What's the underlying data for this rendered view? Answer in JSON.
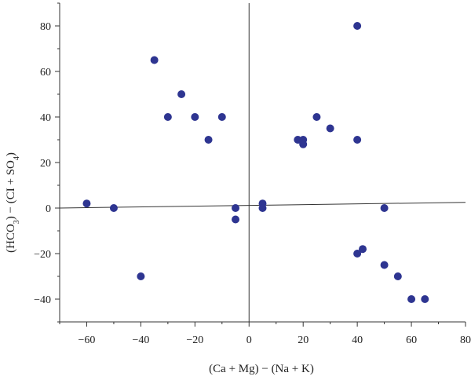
{
  "chart_data": {
    "type": "scatter",
    "title": "",
    "xlabel": "(Ca + Mg) − (Na + K)",
    "ylabel": {
      "part1": "(HCO",
      "sub1": "3",
      "part2": ") − (CI + SO",
      "sub2": "4",
      "part3": ")"
    },
    "xlim": [
      -70,
      80
    ],
    "ylim": [
      -50,
      90
    ],
    "xticks": [
      -60,
      -40,
      -20,
      0,
      20,
      40,
      60,
      80
    ],
    "yticks": [
      -40,
      -20,
      0,
      20,
      40,
      60,
      80
    ],
    "xtick_labels": [
      "−60",
      "−40",
      "−20",
      "0",
      "20",
      "40",
      "60",
      "80"
    ],
    "ytick_labels": [
      "−40",
      "−20",
      "0",
      "20",
      "40",
      "60",
      "80"
    ],
    "grid": false,
    "legend": "none",
    "marker_color": "#2e3591",
    "reference_lines": {
      "vertical_x": 0,
      "trend_line": {
        "x": [
          -70,
          80
        ],
        "y": [
          0,
          2.5
        ]
      }
    },
    "series": [
      {
        "points": [
          {
            "x": -60,
            "y": 2
          },
          {
            "x": -50,
            "y": 0
          },
          {
            "x": -40,
            "y": -30
          },
          {
            "x": -35,
            "y": 65
          },
          {
            "x": -30,
            "y": 40
          },
          {
            "x": -25,
            "y": 50
          },
          {
            "x": -20,
            "y": 40
          },
          {
            "x": -15,
            "y": 30
          },
          {
            "x": -10,
            "y": 40
          },
          {
            "x": -5,
            "y": 0
          },
          {
            "x": -5,
            "y": -5
          },
          {
            "x": 5,
            "y": 2
          },
          {
            "x": 5,
            "y": 0
          },
          {
            "x": 18,
            "y": 30
          },
          {
            "x": 20,
            "y": 30
          },
          {
            "x": 20,
            "y": 28
          },
          {
            "x": 25,
            "y": 40
          },
          {
            "x": 30,
            "y": 35
          },
          {
            "x": 40,
            "y": 80
          },
          {
            "x": 40,
            "y": 30
          },
          {
            "x": 40,
            "y": -20
          },
          {
            "x": 42,
            "y": -18
          },
          {
            "x": 50,
            "y": 0
          },
          {
            "x": 50,
            "y": -25
          },
          {
            "x": 55,
            "y": -30
          },
          {
            "x": 60,
            "y": -40
          },
          {
            "x": 65,
            "y": -40
          }
        ]
      }
    ]
  }
}
